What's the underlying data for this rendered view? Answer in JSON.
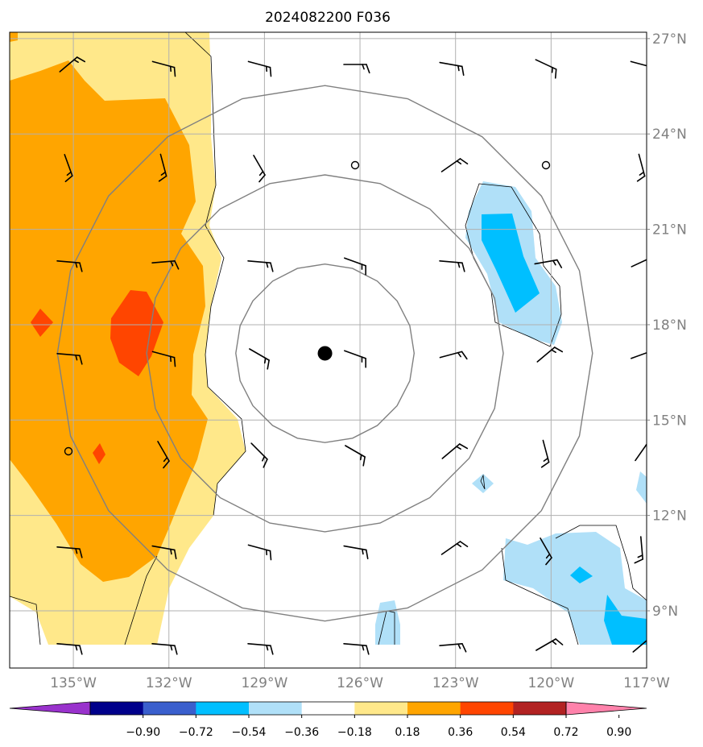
{
  "title": "2024082200 F036",
  "map": {
    "lon_labels": [
      "135°W",
      "132°W",
      "129°W",
      "126°W",
      "123°W",
      "120°W",
      "117°W"
    ],
    "lat_labels": [
      "27°N",
      "24°N",
      "21°N",
      "18°N",
      "15°N",
      "12°N",
      "9°N"
    ],
    "lon_values": [
      -135,
      -132,
      -129,
      -126,
      -123,
      -120,
      -117
    ],
    "lat_values": [
      27,
      24,
      21,
      18,
      15,
      12,
      9
    ],
    "extent": {
      "lon": [
        -137,
        -117
      ],
      "lat": [
        7.2,
        27.2
      ]
    },
    "storm_center": {
      "lon": -127.1,
      "lat": 17.1
    },
    "range_rings_deg": [
      2.8,
      5.6,
      8.4
    ]
  },
  "colorbar": {
    "tick_labels": [
      "−0.90",
      "−0.72",
      "−0.54",
      "−0.36",
      "−0.18",
      "0.18",
      "0.36",
      "0.54",
      "0.72",
      "0.90"
    ],
    "bins": [
      {
        "color": "#9932cc",
        "kind": "extend-low"
      },
      {
        "color": "#00008b"
      },
      {
        "color": "#3a5fcd"
      },
      {
        "color": "#00bfff"
      },
      {
        "color": "#b0e0f8"
      },
      {
        "color": "#ffffff"
      },
      {
        "color": "#ffe88a"
      },
      {
        "color": "#ffa500"
      },
      {
        "color": "#ff4500"
      },
      {
        "color": "#b22222"
      },
      {
        "color": "#ff82ab",
        "kind": "extend-high"
      }
    ]
  },
  "colors": {
    "grid": "#b0b0b0",
    "ring": "#808080",
    "coast": "#000000",
    "light_yellow": "#ffe88a",
    "orange": "#ffa500",
    "red_orange": "#ff4500",
    "light_blue": "#b0e0f8",
    "deep_sky_blue": "#00bfff"
  }
}
